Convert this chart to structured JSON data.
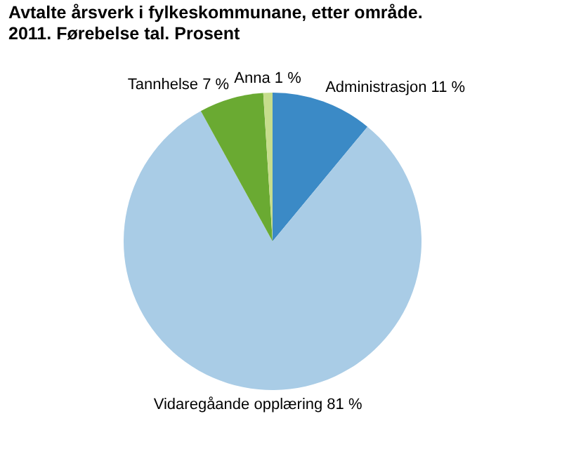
{
  "chart_data": {
    "type": "pie",
    "title": "Avtalte årsverk i fylkeskommunane, etter område. 2011. Førebelse tal. Prosent",
    "categories": [
      "Administrasjon",
      "Vidaregåande opplæring",
      "Tannhelse",
      "Anna"
    ],
    "values": [
      11,
      81,
      7,
      1
    ],
    "value_labels": [
      "11 %",
      "81 %",
      "7 %",
      "1 %"
    ],
    "colors": [
      "#3b8ac6",
      "#a9cce6",
      "#6aaa32",
      "#c6dd8c"
    ]
  }
}
